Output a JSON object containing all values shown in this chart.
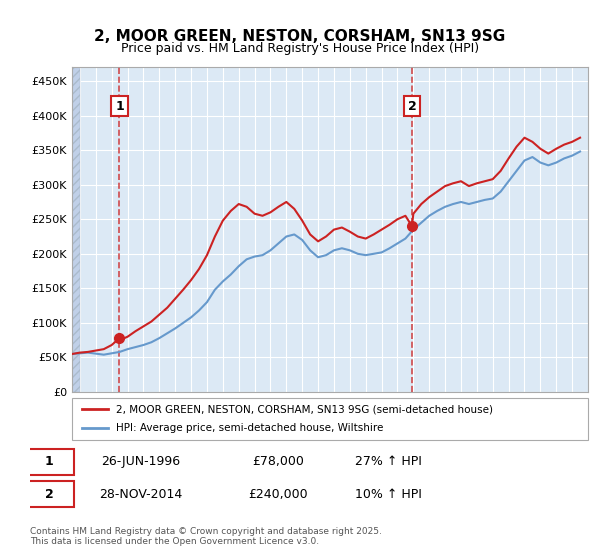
{
  "title": "2, MOOR GREEN, NESTON, CORSHAM, SN13 9SG",
  "subtitle": "Price paid vs. HM Land Registry's House Price Index (HPI)",
  "title_fontsize": 11,
  "subtitle_fontsize": 9,
  "ylim": [
    0,
    470000
  ],
  "yticks": [
    0,
    50000,
    100000,
    150000,
    200000,
    250000,
    300000,
    350000,
    400000,
    450000
  ],
  "ytick_labels": [
    "£0",
    "£50K",
    "£100K",
    "£150K",
    "£200K",
    "£250K",
    "£300K",
    "£350K",
    "£400K",
    "£450K"
  ],
  "background_color": "#ffffff",
  "plot_bg_color": "#dce9f5",
  "hatch_region_end": 1994.0,
  "grid_color": "#ffffff",
  "sale1_date": 1996.49,
  "sale1_price": 78000,
  "sale2_date": 2014.91,
  "sale2_price": 240000,
  "hpi_line_color": "#6699cc",
  "price_line_color": "#cc2222",
  "legend_label_price": "2, MOOR GREEN, NESTON, CORSHAM, SN13 9SG (semi-detached house)",
  "legend_label_hpi": "HPI: Average price, semi-detached house, Wiltshire",
  "annotation1_text": "1",
  "annotation2_text": "2",
  "footer_text": "Contains HM Land Registry data © Crown copyright and database right 2025.\nThis data is licensed under the Open Government Licence v3.0.",
  "table_row1": [
    "1",
    "26-JUN-1996",
    "£78,000",
    "27% ↑ HPI"
  ],
  "table_row2": [
    "2",
    "28-NOV-2014",
    "£240,000",
    "10% ↑ HPI"
  ],
  "xmin": 1993.5,
  "xmax": 2026.0,
  "hpi_data": [
    [
      1993.5,
      55000
    ],
    [
      1994.0,
      56000
    ],
    [
      1994.5,
      57000
    ],
    [
      1995.0,
      55500
    ],
    [
      1995.5,
      54000
    ],
    [
      1996.0,
      56000
    ],
    [
      1996.5,
      58000
    ],
    [
      1997.0,
      62000
    ],
    [
      1997.5,
      65000
    ],
    [
      1998.0,
      68000
    ],
    [
      1998.5,
      72000
    ],
    [
      1999.0,
      78000
    ],
    [
      1999.5,
      85000
    ],
    [
      2000.0,
      92000
    ],
    [
      2000.5,
      100000
    ],
    [
      2001.0,
      108000
    ],
    [
      2001.5,
      118000
    ],
    [
      2002.0,
      130000
    ],
    [
      2002.5,
      148000
    ],
    [
      2003.0,
      160000
    ],
    [
      2003.5,
      170000
    ],
    [
      2004.0,
      182000
    ],
    [
      2004.5,
      192000
    ],
    [
      2005.0,
      196000
    ],
    [
      2005.5,
      198000
    ],
    [
      2006.0,
      205000
    ],
    [
      2006.5,
      215000
    ],
    [
      2007.0,
      225000
    ],
    [
      2007.5,
      228000
    ],
    [
      2008.0,
      220000
    ],
    [
      2008.5,
      205000
    ],
    [
      2009.0,
      195000
    ],
    [
      2009.5,
      198000
    ],
    [
      2010.0,
      205000
    ],
    [
      2010.5,
      208000
    ],
    [
      2011.0,
      205000
    ],
    [
      2011.5,
      200000
    ],
    [
      2012.0,
      198000
    ],
    [
      2012.5,
      200000
    ],
    [
      2013.0,
      202000
    ],
    [
      2013.5,
      208000
    ],
    [
      2014.0,
      215000
    ],
    [
      2014.5,
      222000
    ],
    [
      2015.0,
      235000
    ],
    [
      2015.5,
      245000
    ],
    [
      2016.0,
      255000
    ],
    [
      2016.5,
      262000
    ],
    [
      2017.0,
      268000
    ],
    [
      2017.5,
      272000
    ],
    [
      2018.0,
      275000
    ],
    [
      2018.5,
      272000
    ],
    [
      2019.0,
      275000
    ],
    [
      2019.5,
      278000
    ],
    [
      2020.0,
      280000
    ],
    [
      2020.5,
      290000
    ],
    [
      2021.0,
      305000
    ],
    [
      2021.5,
      320000
    ],
    [
      2022.0,
      335000
    ],
    [
      2022.5,
      340000
    ],
    [
      2023.0,
      332000
    ],
    [
      2023.5,
      328000
    ],
    [
      2024.0,
      332000
    ],
    [
      2024.5,
      338000
    ],
    [
      2025.0,
      342000
    ],
    [
      2025.5,
      348000
    ]
  ],
  "price_data": [
    [
      1993.5,
      55000
    ],
    [
      1994.0,
      57000
    ],
    [
      1994.5,
      58000
    ],
    [
      1995.0,
      60000
    ],
    [
      1995.5,
      62000
    ],
    [
      1996.0,
      68000
    ],
    [
      1996.49,
      78000
    ],
    [
      1996.6,
      76000
    ],
    [
      1997.0,
      80000
    ],
    [
      1997.5,
      88000
    ],
    [
      1998.0,
      95000
    ],
    [
      1998.5,
      102000
    ],
    [
      1999.0,
      112000
    ],
    [
      1999.5,
      122000
    ],
    [
      2000.0,
      135000
    ],
    [
      2000.5,
      148000
    ],
    [
      2001.0,
      162000
    ],
    [
      2001.5,
      178000
    ],
    [
      2002.0,
      198000
    ],
    [
      2002.5,
      225000
    ],
    [
      2003.0,
      248000
    ],
    [
      2003.5,
      262000
    ],
    [
      2004.0,
      272000
    ],
    [
      2004.5,
      268000
    ],
    [
      2005.0,
      258000
    ],
    [
      2005.5,
      255000
    ],
    [
      2006.0,
      260000
    ],
    [
      2006.5,
      268000
    ],
    [
      2007.0,
      275000
    ],
    [
      2007.5,
      265000
    ],
    [
      2008.0,
      248000
    ],
    [
      2008.5,
      228000
    ],
    [
      2009.0,
      218000
    ],
    [
      2009.5,
      225000
    ],
    [
      2010.0,
      235000
    ],
    [
      2010.5,
      238000
    ],
    [
      2011.0,
      232000
    ],
    [
      2011.5,
      225000
    ],
    [
      2012.0,
      222000
    ],
    [
      2012.5,
      228000
    ],
    [
      2013.0,
      235000
    ],
    [
      2013.5,
      242000
    ],
    [
      2014.0,
      250000
    ],
    [
      2014.5,
      255000
    ],
    [
      2014.91,
      240000
    ],
    [
      2015.0,
      258000
    ],
    [
      2015.5,
      272000
    ],
    [
      2016.0,
      282000
    ],
    [
      2016.5,
      290000
    ],
    [
      2017.0,
      298000
    ],
    [
      2017.5,
      302000
    ],
    [
      2018.0,
      305000
    ],
    [
      2018.5,
      298000
    ],
    [
      2019.0,
      302000
    ],
    [
      2019.5,
      305000
    ],
    [
      2020.0,
      308000
    ],
    [
      2020.5,
      320000
    ],
    [
      2021.0,
      338000
    ],
    [
      2021.5,
      355000
    ],
    [
      2022.0,
      368000
    ],
    [
      2022.5,
      362000
    ],
    [
      2023.0,
      352000
    ],
    [
      2023.5,
      345000
    ],
    [
      2024.0,
      352000
    ],
    [
      2024.5,
      358000
    ],
    [
      2025.0,
      362000
    ],
    [
      2025.5,
      368000
    ]
  ]
}
